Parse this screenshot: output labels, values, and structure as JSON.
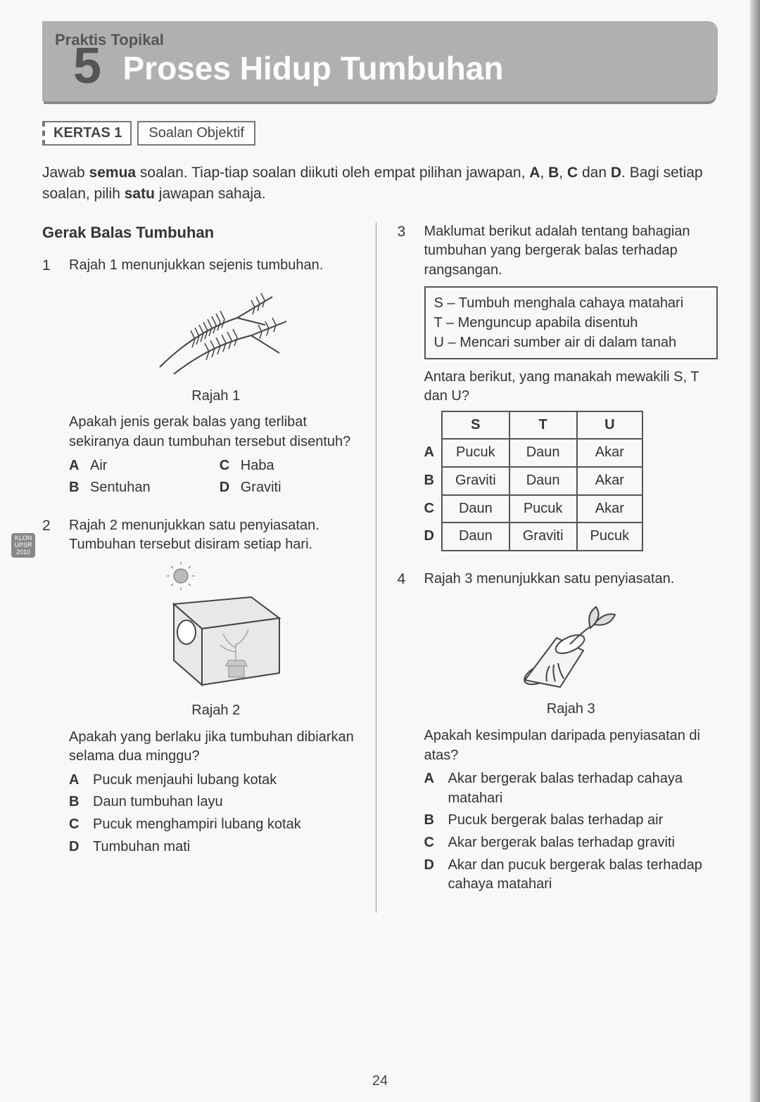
{
  "header": {
    "praktis_label": "Praktis Topikal",
    "chapter_number": "5",
    "chapter_title": "Proses Hidup Tumbuhan"
  },
  "kertas": {
    "badge": "KERTAS 1",
    "type": "Soalan Objektif"
  },
  "instructions_html": "Jawab <b>semua</b> soalan. Tiap-tiap soalan diikuti oleh empat pilihan jawapan, <b>A</b>, <b>B</b>, <b>C</b> dan <b>D</b>. Bagi setiap soalan, pilih <b>satu</b> jawapan sahaja.",
  "section_heading": "Gerak Balas Tumbuhan",
  "q1": {
    "num": "1",
    "stem": "Rajah 1 menunjukkan sejenis tumbuhan.",
    "caption": "Rajah 1",
    "prompt": "Apakah jenis gerak balas yang terlibat sekiranya daun tumbuhan tersebut disentuh?",
    "options": {
      "A": "Air",
      "B": "Sentuhan",
      "C": "Haba",
      "D": "Graviti"
    }
  },
  "q2": {
    "num": "2",
    "klon": "KLON UPSR 2010",
    "stem": "Rajah 2 menunjukkan satu penyiasatan. Tumbuhan tersebut disiram setiap hari.",
    "caption": "Rajah 2",
    "prompt": "Apakah yang berlaku jika tumbuhan dibiarkan selama dua minggu?",
    "options": {
      "A": "Pucuk menjauhi lubang kotak",
      "B": "Daun tumbuhan layu",
      "C": "Pucuk menghampiri lubang kotak",
      "D": "Tumbuhan mati"
    }
  },
  "q3": {
    "num": "3",
    "stem": "Maklumat berikut adalah tentang bahagian tumbuhan yang bergerak balas terhadap rangsangan.",
    "box": {
      "S": "Tumbuh menghala cahaya matahari",
      "T": "Menguncup apabila disentuh",
      "U": "Mencari sumber air di dalam tanah"
    },
    "prompt": "Antara berikut, yang manakah mewakili S, T dan U?",
    "table": {
      "headers": [
        "S",
        "T",
        "U"
      ],
      "rows": [
        {
          "label": "A",
          "cells": [
            "Pucuk",
            "Daun",
            "Akar"
          ]
        },
        {
          "label": "B",
          "cells": [
            "Graviti",
            "Daun",
            "Akar"
          ]
        },
        {
          "label": "C",
          "cells": [
            "Daun",
            "Pucuk",
            "Akar"
          ]
        },
        {
          "label": "D",
          "cells": [
            "Daun",
            "Graviti",
            "Pucuk"
          ]
        }
      ]
    }
  },
  "q4": {
    "num": "4",
    "stem": "Rajah 3 menunjukkan satu penyiasatan.",
    "caption": "Rajah 3",
    "prompt": "Apakah kesimpulan daripada penyiasatan di atas?",
    "options": {
      "A": "Akar bergerak balas terhadap cahaya matahari",
      "B": "Pucuk bergerak balas terhadap air",
      "C": "Akar bergerak balas terhadap graviti",
      "D": "Akar dan pucuk bergerak balas terhadap cahaya matahari"
    }
  },
  "page_number": "24",
  "colors": {
    "banner_bg": "#b0b0b0",
    "banner_shadow": "#8a8a8a",
    "title_text": "#ffffff",
    "body_text": "#333333",
    "border": "#555555"
  }
}
